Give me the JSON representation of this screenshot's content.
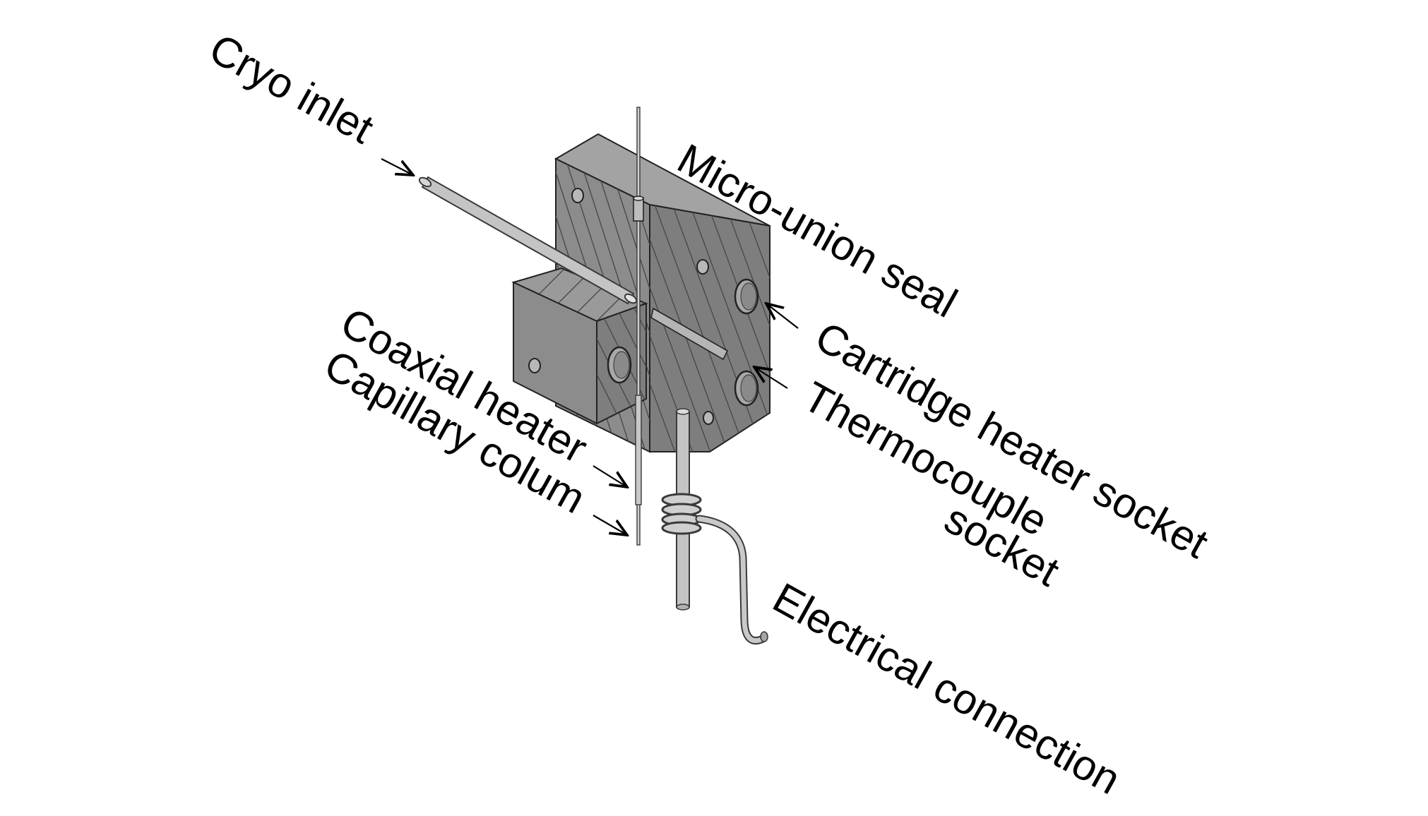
{
  "diagram": {
    "labels": {
      "cryo_inlet": "Cryo inlet",
      "micro_union_seal": "Micro-union seal",
      "cartridge_heater_socket": "Cartridge heater socket",
      "thermocouple_socket_line1": "Thermocouple",
      "thermocouple_socket_line2": "socket",
      "coaxial_heater": "Coaxial heater",
      "capillary_colum": "Capillary colum",
      "electrical_connection": "Electrical connection"
    },
    "colors": {
      "block_front": "#8c8c8c",
      "block_side": "#7b7b7b",
      "block_top": "#a3a3a3",
      "hatch": "#4a4a4a",
      "tube": "#c4c4c4",
      "tube_outline": "#3a3a3a",
      "text": "#000000"
    }
  }
}
